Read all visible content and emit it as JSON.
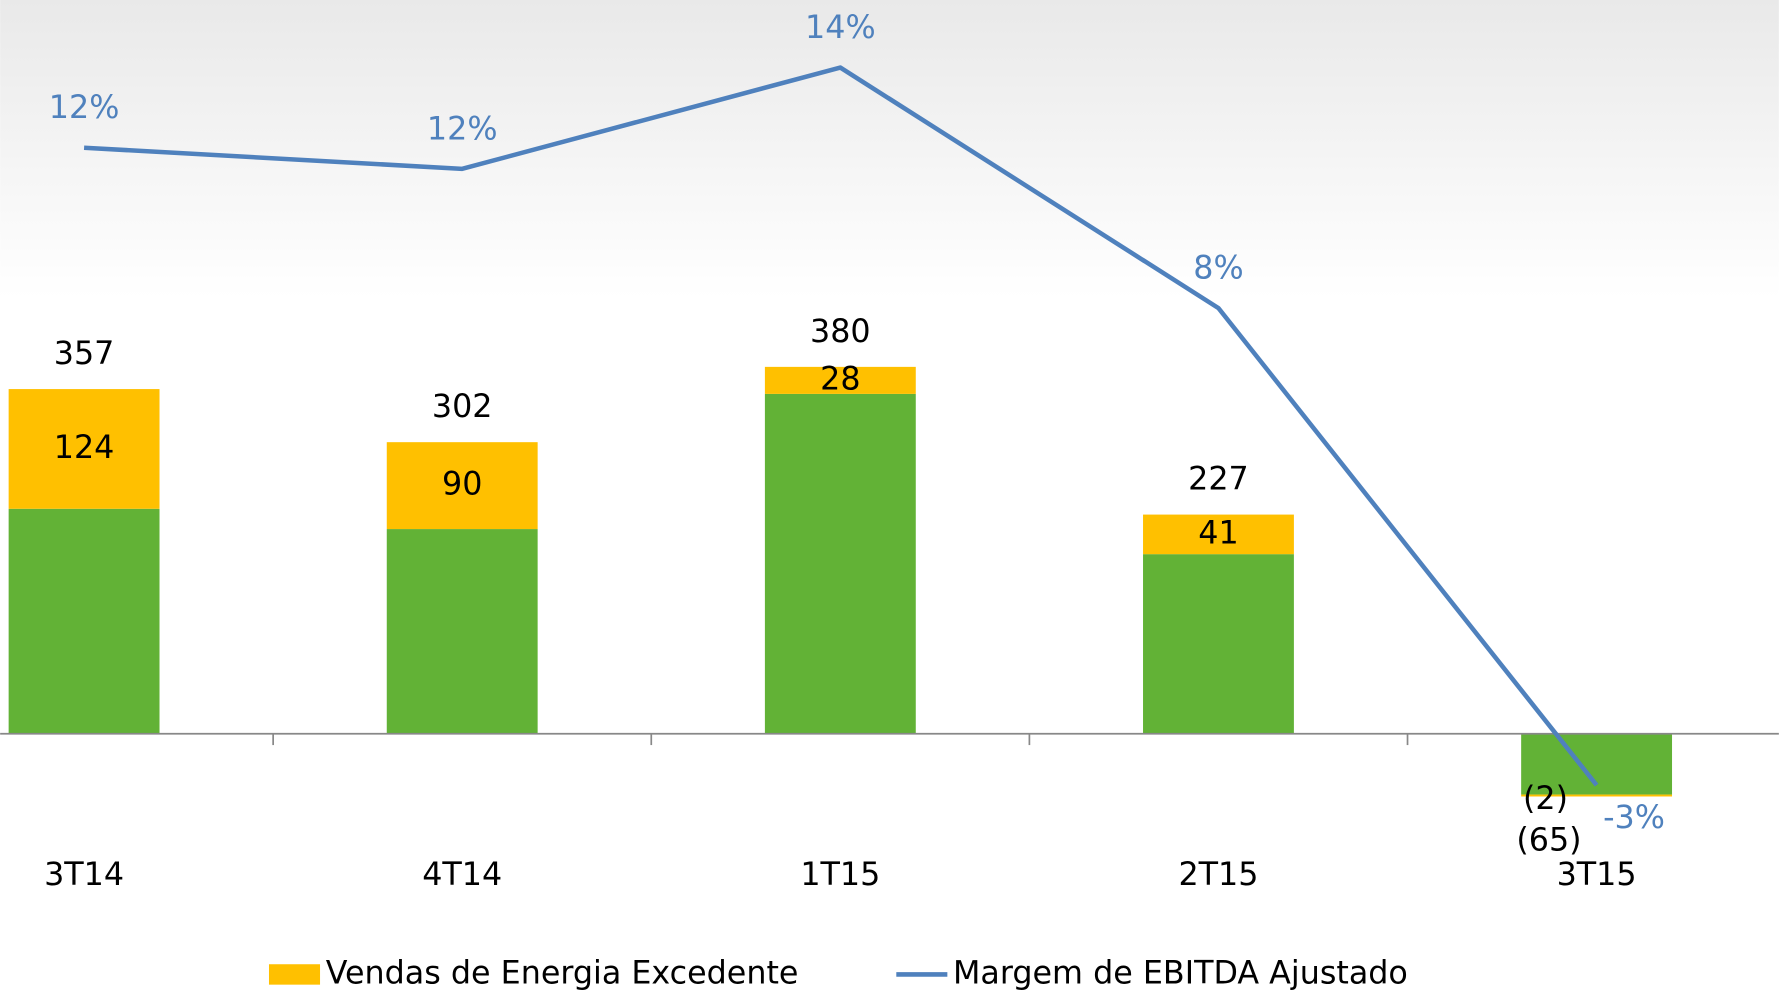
{
  "chart_data": {
    "type": "bar",
    "stacked": true,
    "categories": [
      "3T14",
      "4T14",
      "1T15",
      "2T15",
      "3T15"
    ],
    "series": [
      {
        "color": "#62b236",
        "values": [
          233,
          212,
          352,
          186,
          -63
        ]
      },
      {
        "name": "Vendas de Energia Excedente",
        "color": "#ffc000",
        "values": [
          124,
          90,
          28,
          41,
          -2
        ],
        "value_labels": [
          "124",
          "90",
          "28",
          "41",
          "(2)"
        ]
      },
      {
        "name": "Margem de EBITDA Ajustado",
        "type": "line",
        "axis": "y2",
        "color": "#4f81bd",
        "values": [
          12.1,
          11.6,
          14,
          8.3,
          -3
        ],
        "value_labels": [
          "12%",
          "12%",
          "14%",
          "8%",
          "-3%"
        ]
      }
    ],
    "totals": [
      357,
      302,
      380,
      227,
      -65
    ],
    "total_labels": [
      "357",
      "302",
      "380",
      "227",
      "(65)"
    ],
    "ylim": [
      -180,
      760
    ],
    "y2lim": [
      -5.9,
      15.6
    ]
  }
}
